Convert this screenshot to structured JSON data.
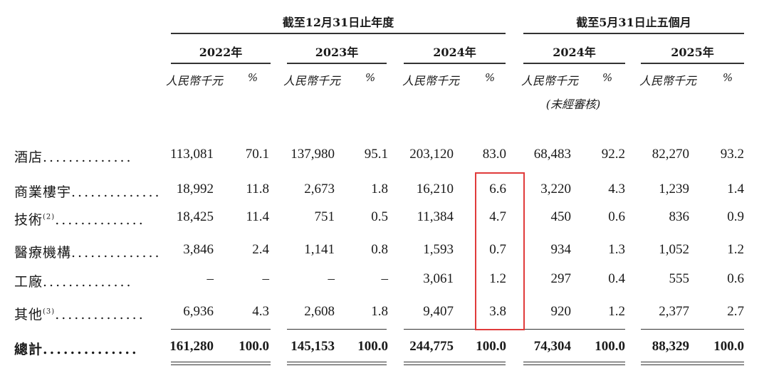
{
  "header": {
    "period_full_year": "截至12月31日止年度",
    "period_five_months": "截至5月31日止五個月",
    "years": [
      "2022年",
      "2023年",
      "2024年",
      "2024年",
      "2025年"
    ],
    "unit_label": "人民幣千元",
    "pct_label": "%",
    "unaudited_label": "(未經審核)"
  },
  "rows": [
    {
      "label": "酒店",
      "note": "",
      "values": [
        "113,081",
        "70.1",
        "137,980",
        "95.1",
        "203,120",
        "83.0",
        "68,483",
        "92.2",
        "82,270",
        "93.2"
      ]
    },
    {
      "label": "商業樓宇",
      "note": "",
      "values": [
        "18,992",
        "11.8",
        "2,673",
        "1.8",
        "16,210",
        "6.6",
        "3,220",
        "4.3",
        "1,239",
        "1.4"
      ]
    },
    {
      "label": "技術",
      "note": "(2)",
      "values": [
        "18,425",
        "11.4",
        "751",
        "0.5",
        "11,384",
        "4.7",
        "450",
        "0.6",
        "836",
        "0.9"
      ]
    },
    {
      "label": "醫療機構",
      "note": "",
      "values": [
        "3,846",
        "2.4",
        "1,141",
        "0.8",
        "1,593",
        "0.7",
        "934",
        "1.3",
        "1,052",
        "1.2"
      ]
    },
    {
      "label": "工廠",
      "note": "",
      "values": [
        "–",
        "–",
        "–",
        "–",
        "3,061",
        "1.2",
        "297",
        "0.4",
        "555",
        "0.6"
      ]
    },
    {
      "label": "其他",
      "note": "(3)",
      "values": [
        "6,936",
        "4.3",
        "2,608",
        "1.8",
        "9,407",
        "3.8",
        "920",
        "1.2",
        "2,377",
        "2.7"
      ]
    }
  ],
  "total": {
    "label": "總計",
    "values": [
      "161,280",
      "100.0",
      "145,153",
      "100.0",
      "244,775",
      "100.0",
      "74,304",
      "100.0",
      "88,329",
      "100.0"
    ]
  },
  "leader_dots": "..............",
  "highlight_color": "#e03b3b"
}
